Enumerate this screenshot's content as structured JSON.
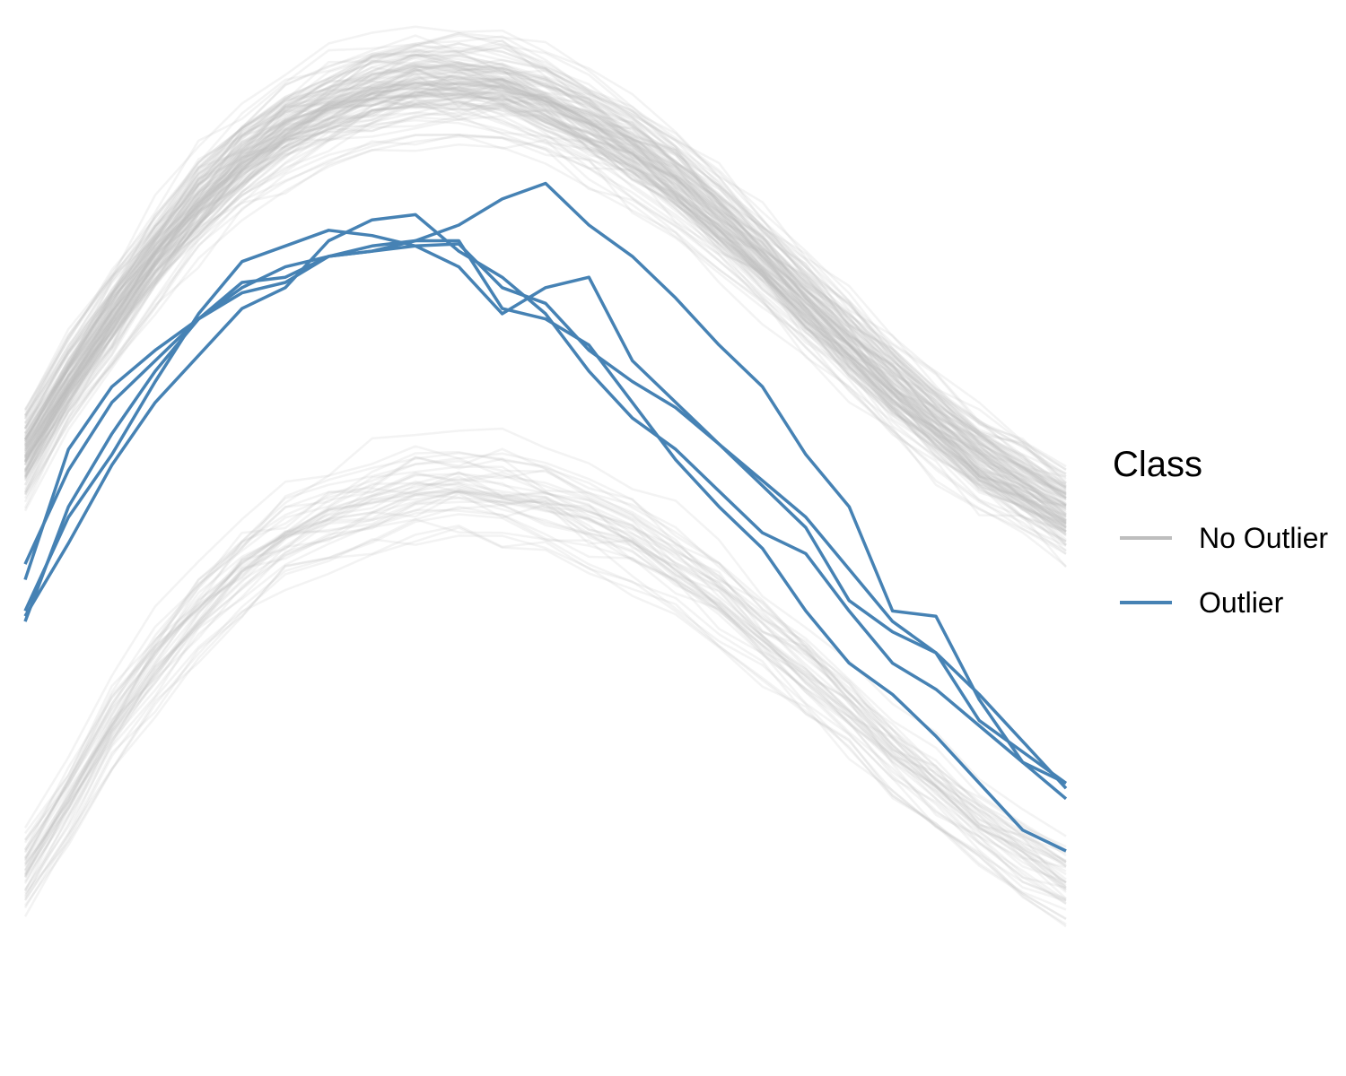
{
  "chart_data": {
    "type": "line",
    "title": "",
    "xlabel": "",
    "ylabel": "",
    "axes_visible": false,
    "grid": false,
    "x": [
      1,
      2,
      3,
      4,
      5,
      6,
      7,
      8,
      9,
      10,
      11,
      12,
      13,
      14,
      15,
      16,
      17,
      18,
      19,
      20,
      21,
      22,
      23,
      24,
      25
    ],
    "ylim": [
      -0.8,
      9.0
    ],
    "legend": {
      "title": "Class",
      "position": "right",
      "entries": [
        {
          "label": "No Outlier",
          "color": "#bebebe"
        },
        {
          "label": "Outlier",
          "color": "#4682b4"
        }
      ]
    },
    "groups": [
      {
        "class": "No Outlier",
        "color": "#bebebe",
        "opacity": 0.18,
        "count": 120,
        "description_profile": "upper band of curves peaking near x=10",
        "mean": [
          4.9,
          5.6,
          6.2,
          6.8,
          7.3,
          7.7,
          8.0,
          8.2,
          8.35,
          8.45,
          8.45,
          8.4,
          8.25,
          8.05,
          7.8,
          7.5,
          7.15,
          6.75,
          6.35,
          5.95,
          5.55,
          5.2,
          4.85,
          4.6,
          4.35
        ]
      },
      {
        "class": "No Outlier",
        "color": "#bebebe",
        "opacity": 0.18,
        "count": 40,
        "description_profile": "lower band of curves peaking near x=11",
        "mean": [
          0.9,
          1.6,
          2.3,
          2.9,
          3.4,
          3.8,
          4.1,
          4.3,
          4.45,
          4.55,
          4.6,
          4.55,
          4.45,
          4.3,
          4.1,
          3.85,
          3.55,
          3.2,
          2.85,
          2.45,
          2.05,
          1.7,
          1.35,
          1.05,
          0.8
        ]
      },
      {
        "class": "Outlier",
        "color": "#4682b4",
        "opacity": 1,
        "series": [
          {
            "values": [
              3.3,
              4.4,
              5.1,
              5.7,
              6.2,
              6.5,
              6.7,
              6.8,
              6.9,
              6.95,
              6.95,
              6.3,
              6.2,
              5.95,
              5.4,
              4.85,
              4.4,
              4.0,
              3.4,
              2.9,
              2.6,
              2.2,
              1.75,
              1.3,
              1.1
            ]
          },
          {
            "values": [
              3.7,
              4.95,
              5.55,
              5.9,
              6.2,
              6.55,
              6.6,
              6.8,
              6.85,
              6.9,
              6.92,
              6.5,
              6.35,
              5.9,
              5.6,
              5.35,
              5.0,
              4.6,
              4.2,
              3.5,
              3.2,
              3.0,
              2.6,
              2.15,
              1.7
            ]
          },
          {
            "values": [
              3.4,
              4.3,
              4.9,
              5.6,
              6.25,
              6.75,
              6.9,
              7.05,
              7.0,
              6.9,
              6.7,
              6.25,
              6.5,
              6.6,
              5.8,
              5.4,
              5.0,
              4.65,
              4.3,
              3.8,
              3.3,
              3.0,
              2.35,
              2.05,
              1.75
            ]
          },
          {
            "values": [
              3.35,
              4.05,
              4.8,
              5.4,
              5.85,
              6.3,
              6.5,
              6.95,
              7.15,
              7.2,
              6.85,
              6.6,
              6.25,
              5.7,
              5.25,
              4.95,
              4.55,
              4.15,
              3.95,
              3.4,
              2.9,
              2.65,
              2.3,
              1.95,
              1.75
            ]
          },
          {
            "values": [
              3.85,
              4.75,
              5.4,
              5.8,
              6.2,
              6.45,
              6.55,
              6.8,
              6.85,
              6.95,
              7.1,
              7.35,
              7.5,
              7.1,
              6.8,
              6.4,
              5.95,
              5.55,
              4.9,
              4.4,
              3.4,
              3.35,
              2.55,
              1.95,
              1.6
            ]
          }
        ]
      }
    ]
  }
}
